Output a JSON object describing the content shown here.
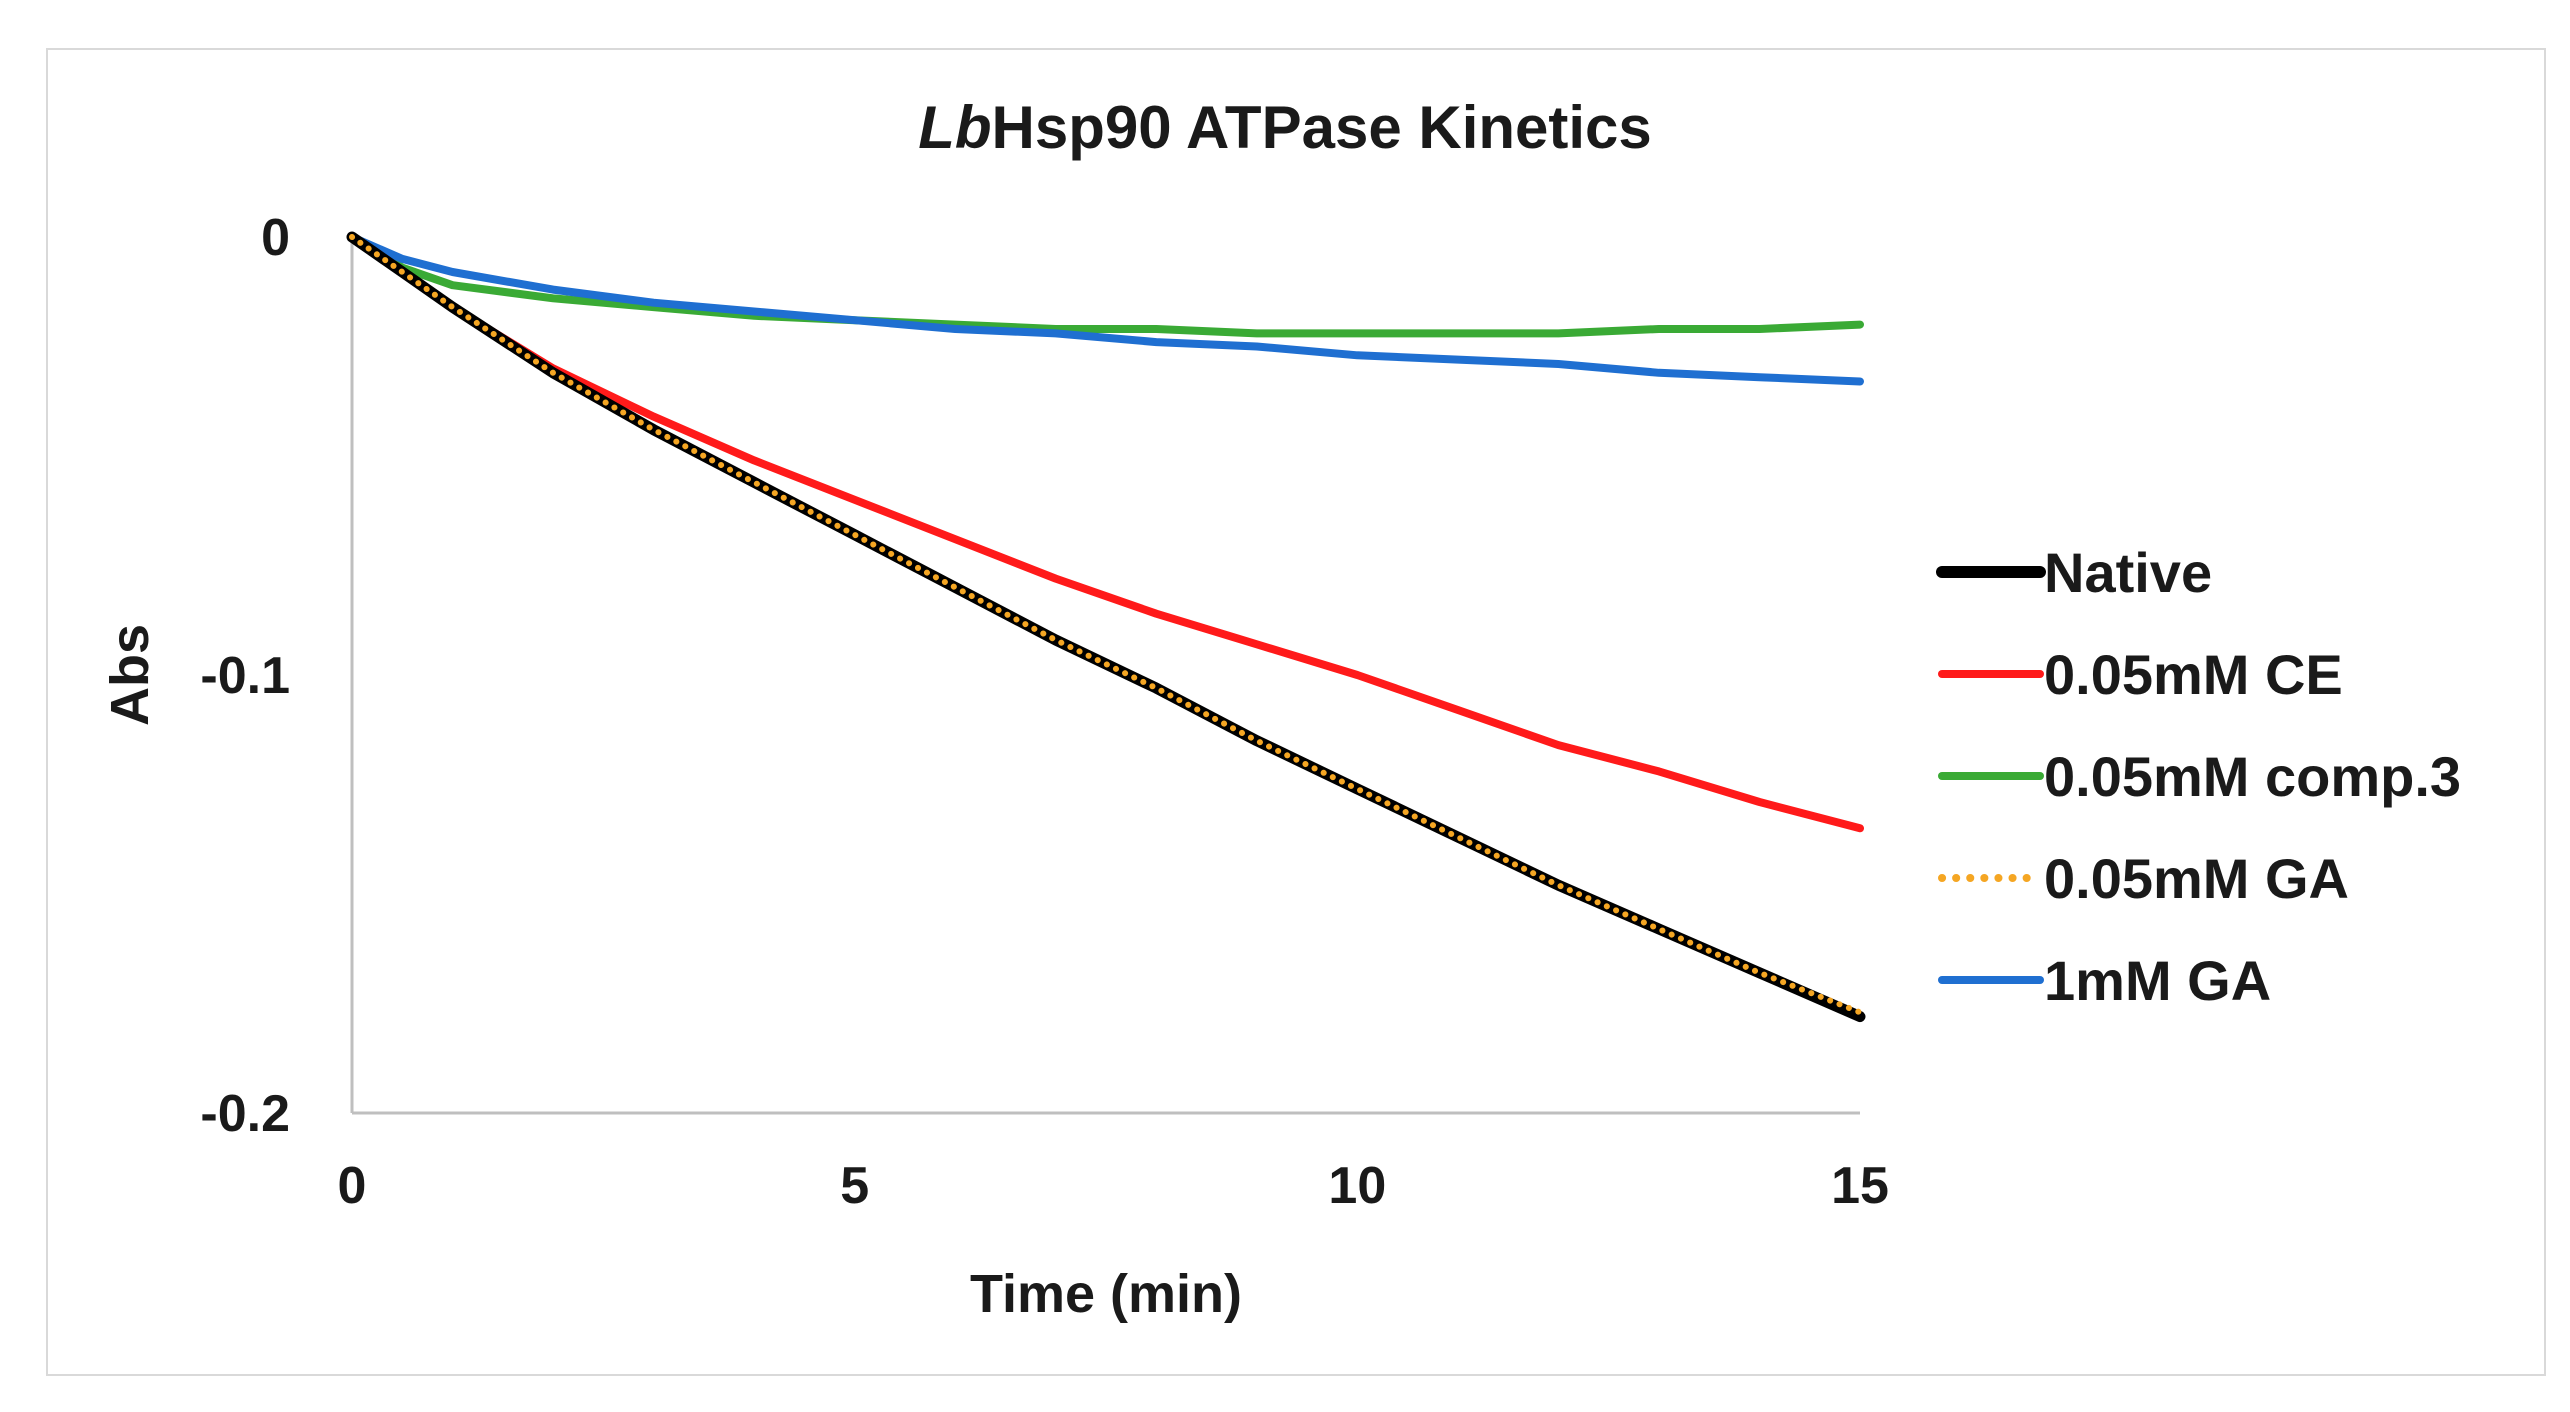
{
  "chart_data": {
    "type": "line",
    "title_italic": "Lb",
    "title_rest": "Hsp90 ATPase Kinetics",
    "xlabel": "Time (min)",
    "ylabel": "Abs",
    "xlim": [
      0,
      15
    ],
    "ylim": [
      -0.2,
      0
    ],
    "xticks": [
      0,
      5,
      10,
      15
    ],
    "xtick_labels": [
      "0",
      "5",
      "10",
      "15"
    ],
    "yticks": [
      0,
      -0.1,
      -0.2
    ],
    "ytick_labels": [
      "0",
      "-0.1",
      "-0.2"
    ],
    "grid": false,
    "legend_position": "right",
    "series": [
      {
        "name": "Native",
        "color": "#000000",
        "style": "solid",
        "x": [
          0,
          0.5,
          1,
          2,
          3,
          4,
          5,
          6,
          7,
          8,
          9,
          10,
          11,
          12,
          13,
          14,
          15
        ],
        "y": [
          0,
          -0.008,
          -0.016,
          -0.031,
          -0.044,
          -0.056,
          -0.068,
          -0.08,
          -0.092,
          -0.103,
          -0.115,
          -0.126,
          -0.137,
          -0.148,
          -0.158,
          -0.168,
          -0.178
        ]
      },
      {
        "name": "0.05mM CE",
        "color": "#ff1a1a",
        "style": "solid",
        "x": [
          0,
          0.5,
          1,
          2,
          3,
          4,
          5,
          6,
          7,
          8,
          9,
          10,
          11,
          12,
          13,
          14,
          15
        ],
        "y": [
          0,
          -0.008,
          -0.016,
          -0.03,
          -0.041,
          -0.051,
          -0.06,
          -0.069,
          -0.078,
          -0.086,
          -0.093,
          -0.1,
          -0.108,
          -0.116,
          -0.122,
          -0.129,
          -0.135
        ]
      },
      {
        "name": "0.05mM comp.3",
        "color": "#3aaa35",
        "style": "solid",
        "x": [
          0,
          0.5,
          1,
          2,
          3,
          4,
          5,
          6,
          7,
          8,
          9,
          10,
          11,
          12,
          13,
          14,
          15
        ],
        "y": [
          0,
          -0.007,
          -0.011,
          -0.014,
          -0.016,
          -0.018,
          -0.019,
          -0.02,
          -0.021,
          -0.021,
          -0.022,
          -0.022,
          -0.022,
          -0.022,
          -0.021,
          -0.021,
          -0.02
        ]
      },
      {
        "name": "0.05mM GA",
        "color": "#f5a623",
        "style": "dotted",
        "x": [
          0,
          0.5,
          1,
          2,
          3,
          4,
          5,
          6,
          7,
          8,
          9,
          10,
          11,
          12,
          13,
          14,
          15
        ],
        "y": [
          0,
          -0.008,
          -0.016,
          -0.031,
          -0.044,
          -0.056,
          -0.068,
          -0.08,
          -0.092,
          -0.103,
          -0.115,
          -0.126,
          -0.137,
          -0.148,
          -0.158,
          -0.168,
          -0.177
        ]
      },
      {
        "name": "1mM GA",
        "color": "#1f6fd1",
        "style": "solid",
        "x": [
          0,
          0.5,
          1,
          2,
          3,
          4,
          5,
          6,
          7,
          8,
          9,
          10,
          11,
          12,
          13,
          14,
          15
        ],
        "y": [
          0,
          -0.005,
          -0.008,
          -0.012,
          -0.015,
          -0.017,
          -0.019,
          -0.021,
          -0.022,
          -0.024,
          -0.025,
          -0.027,
          -0.028,
          -0.029,
          -0.031,
          -0.032,
          -0.033
        ]
      }
    ]
  }
}
